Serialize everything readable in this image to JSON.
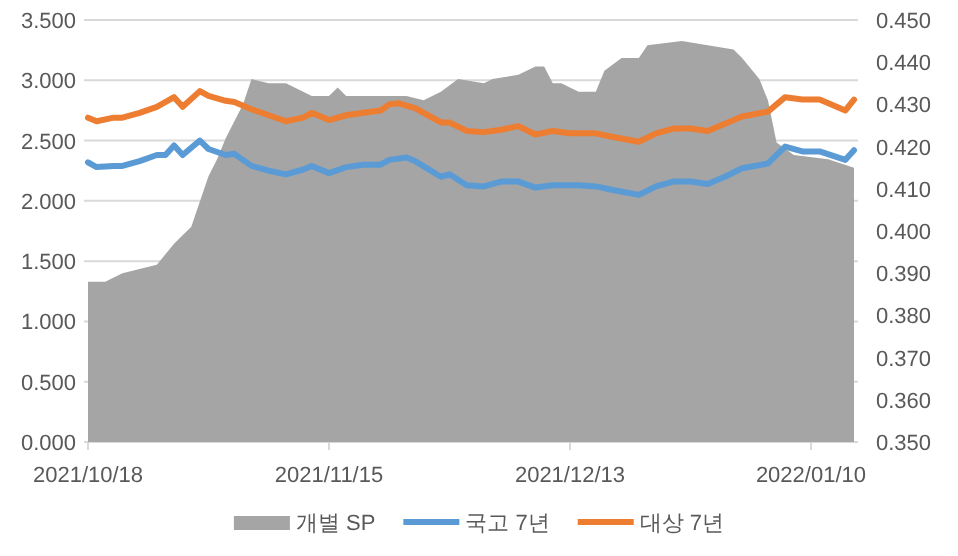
{
  "chart_data": {
    "type": "line",
    "xlim": [
      "2021-10-18",
      "2022-01-15"
    ],
    "xticks": [
      {
        "value": "2021-10-18",
        "label": "2021/10/18"
      },
      {
        "value": "2021-11-15",
        "label": "2021/11/15"
      },
      {
        "value": "2021-12-13",
        "label": "2021/12/13"
      },
      {
        "value": "2022-01-10",
        "label": "2022/01/10"
      }
    ],
    "ylim": [
      0,
      3.5
    ],
    "yticks": [
      {
        "value": 0,
        "label": "0.000"
      },
      {
        "value": 0.5,
        "label": "0.500"
      },
      {
        "value": 1,
        "label": "1.000"
      },
      {
        "value": 1.5,
        "label": "1.500"
      },
      {
        "value": 2,
        "label": "2.000"
      },
      {
        "value": 2.5,
        "label": "2.500"
      },
      {
        "value": 3,
        "label": "3.000"
      },
      {
        "value": 3.5,
        "label": "3.500"
      }
    ],
    "y2lim": [
      0.35,
      0.45
    ],
    "y2ticks": [
      {
        "value": 0.35,
        "label": "0.350"
      },
      {
        "value": 0.36,
        "label": "0.360"
      },
      {
        "value": 0.37,
        "label": "0.370"
      },
      {
        "value": 0.38,
        "label": "0.380"
      },
      {
        "value": 0.39,
        "label": "0.390"
      },
      {
        "value": 0.4,
        "label": "0.400"
      },
      {
        "value": 0.41,
        "label": "0.410"
      },
      {
        "value": 0.42,
        "label": "0.420"
      },
      {
        "value": 0.43,
        "label": "0.430"
      },
      {
        "value": 0.44,
        "label": "0.440"
      },
      {
        "value": 0.45,
        "label": "0.450"
      }
    ],
    "grid": "y",
    "legend": "bottom",
    "marker": "none",
    "line_style": "solid",
    "series": [
      {
        "name": "개별 SP",
        "type": "area",
        "axis": "y2",
        "color": "#a5a5a5",
        "x": [
          "2021-10-18",
          "2021-10-20",
          "2021-10-22",
          "2021-10-24",
          "2021-10-26",
          "2021-10-28",
          "2021-10-30",
          "2021-11-01",
          "2021-11-02",
          "2021-11-03",
          "2021-11-05",
          "2021-11-06",
          "2021-11-08",
          "2021-11-10",
          "2021-11-13",
          "2021-11-15",
          "2021-11-16",
          "2021-11-17",
          "2021-11-22",
          "2021-11-24",
          "2021-11-26",
          "2021-11-28",
          "2021-11-30",
          "2021-12-03",
          "2021-12-04",
          "2021-12-07",
          "2021-12-09",
          "2021-12-10",
          "2021-12-11",
          "2021-12-12",
          "2021-12-14",
          "2021-12-16",
          "2021-12-17",
          "2021-12-19",
          "2021-12-21",
          "2021-12-22",
          "2021-12-26",
          "2021-12-29",
          "2022-01-01",
          "2022-01-02",
          "2022-01-04",
          "2022-01-05",
          "2022-01-06",
          "2022-01-08",
          "2022-01-12",
          "2022-01-15"
        ],
        "values": [
          0.388,
          0.388,
          0.39,
          0.391,
          0.392,
          0.397,
          0.401,
          0.413,
          0.417,
          0.422,
          0.43,
          0.436,
          0.435,
          0.435,
          0.432,
          0.432,
          0.434,
          0.432,
          0.432,
          0.432,
          0.431,
          0.433,
          0.436,
          0.435,
          0.436,
          0.437,
          0.439,
          0.439,
          0.435,
          0.435,
          0.433,
          0.433,
          0.438,
          0.441,
          0.441,
          0.444,
          0.445,
          0.444,
          0.443,
          0.441,
          0.436,
          0.431,
          0.421,
          0.418,
          0.417,
          0.415
        ]
      },
      {
        "name": "국고 7년",
        "type": "line",
        "color": "#5b9bd5",
        "x": [
          "2021-10-18",
          "2021-10-19",
          "2021-10-21",
          "2021-10-22",
          "2021-10-24",
          "2021-10-26",
          "2021-10-27",
          "2021-10-28",
          "2021-10-29",
          "2021-10-31",
          "2021-11-01",
          "2021-11-03",
          "2021-11-04",
          "2021-11-06",
          "2021-11-08",
          "2021-11-10",
          "2021-11-12",
          "2021-11-13",
          "2021-11-15",
          "2021-11-17",
          "2021-11-19",
          "2021-11-21",
          "2021-11-22",
          "2021-11-24",
          "2021-11-25",
          "2021-11-28",
          "2021-11-29",
          "2021-12-01",
          "2021-12-03",
          "2021-12-05",
          "2021-12-07",
          "2021-12-09",
          "2021-12-11",
          "2021-12-14",
          "2021-12-16",
          "2021-12-18",
          "2021-12-21",
          "2021-12-23",
          "2021-12-25",
          "2021-12-27",
          "2021-12-29",
          "2021-12-31",
          "2022-01-02",
          "2022-01-05",
          "2022-01-07",
          "2022-01-09",
          "2022-01-11",
          "2022-01-14",
          "2022-01-15"
        ],
        "values": [
          2.32,
          2.28,
          2.29,
          2.29,
          2.33,
          2.38,
          2.38,
          2.46,
          2.38,
          2.5,
          2.43,
          2.38,
          2.39,
          2.29,
          2.25,
          2.22,
          2.26,
          2.29,
          2.23,
          2.28,
          2.3,
          2.3,
          2.34,
          2.36,
          2.33,
          2.2,
          2.22,
          2.13,
          2.12,
          2.16,
          2.16,
          2.11,
          2.13,
          2.13,
          2.12,
          2.09,
          2.05,
          2.12,
          2.16,
          2.16,
          2.14,
          2.2,
          2.27,
          2.31,
          2.45,
          2.41,
          2.41,
          2.34,
          2.42
        ]
      },
      {
        "name": "대상 7년",
        "type": "line",
        "color": "#ed7d31",
        "x": [
          "2021-10-18",
          "2021-10-19",
          "2021-10-21",
          "2021-10-22",
          "2021-10-24",
          "2021-10-26",
          "2021-10-28",
          "2021-10-29",
          "2021-10-31",
          "2021-11-01",
          "2021-11-03",
          "2021-11-04",
          "2021-11-06",
          "2021-11-08",
          "2021-11-10",
          "2021-11-12",
          "2021-11-13",
          "2021-11-15",
          "2021-11-17",
          "2021-11-19",
          "2021-11-21",
          "2021-11-22",
          "2021-11-23",
          "2021-11-25",
          "2021-11-28",
          "2021-11-29",
          "2021-12-01",
          "2021-12-03",
          "2021-12-05",
          "2021-12-07",
          "2021-12-09",
          "2021-12-11",
          "2021-12-13",
          "2021-12-16",
          "2021-12-18",
          "2021-12-21",
          "2021-12-23",
          "2021-12-25",
          "2021-12-27",
          "2021-12-29",
          "2021-12-31",
          "2022-01-02",
          "2022-01-05",
          "2022-01-07",
          "2022-01-09",
          "2022-01-11",
          "2022-01-14",
          "2022-01-15"
        ],
        "values": [
          2.69,
          2.66,
          2.69,
          2.69,
          2.73,
          2.78,
          2.86,
          2.78,
          2.91,
          2.87,
          2.83,
          2.82,
          2.76,
          2.71,
          2.66,
          2.69,
          2.73,
          2.67,
          2.71,
          2.73,
          2.75,
          2.8,
          2.81,
          2.77,
          2.65,
          2.65,
          2.58,
          2.57,
          2.59,
          2.62,
          2.55,
          2.58,
          2.56,
          2.56,
          2.53,
          2.49,
          2.56,
          2.6,
          2.6,
          2.58,
          2.64,
          2.7,
          2.74,
          2.86,
          2.84,
          2.84,
          2.75,
          2.84
        ]
      }
    ]
  }
}
